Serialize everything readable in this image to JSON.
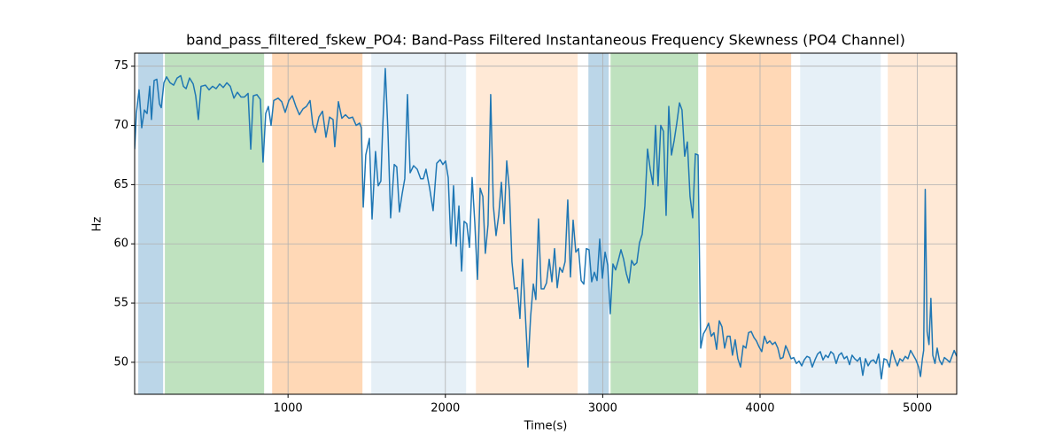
{
  "chart_data": {
    "type": "line",
    "title": "band_pass_filtered_fskew_PO4: Band-Pass Filtered Instantaneous Frequency Skewness (PO4 Channel)",
    "xlabel": "Time(s)",
    "ylabel": "Hz",
    "xlim": [
      25,
      5250
    ],
    "ylim": [
      47.3,
      76.1
    ],
    "xticks": [
      1000,
      2000,
      3000,
      4000,
      5000
    ],
    "yticks": [
      50,
      55,
      60,
      65,
      70,
      75
    ],
    "grid": true,
    "color": "#1f77b4",
    "spans": [
      {
        "start": 48,
        "end": 206,
        "color": "#1f77b44d"
      },
      {
        "start": 217,
        "end": 848,
        "color": "#2ca02c4d"
      },
      {
        "start": 899,
        "end": 1473,
        "color": "#ff7f0e4d"
      },
      {
        "start": 1529,
        "end": 2132,
        "color": "#1f77b41c"
      },
      {
        "start": 2194,
        "end": 2841,
        "color": "#ff7f0e2b"
      },
      {
        "start": 2909,
        "end": 3038,
        "color": "#1f77b44d"
      },
      {
        "start": 3050,
        "end": 3607,
        "color": "#2ca02c4d"
      },
      {
        "start": 3658,
        "end": 4198,
        "color": "#ff7f0e4d"
      },
      {
        "start": 4255,
        "end": 4767,
        "color": "#1f77b41c"
      },
      {
        "start": 4812,
        "end": 5250,
        "color": "#ff7f0e2b"
      }
    ],
    "x": [
      25,
      36,
      53,
      70,
      87,
      104,
      121,
      132,
      149,
      166,
      183,
      194,
      211,
      228,
      250,
      273,
      295,
      318,
      335,
      352,
      374,
      397,
      413,
      430,
      447,
      475,
      498,
      520,
      543,
      565,
      588,
      611,
      633,
      656,
      678,
      701,
      723,
      746,
      763,
      779,
      802,
      824,
      841,
      858,
      875,
      892,
      909,
      937,
      960,
      982,
      1005,
      1027,
      1050,
      1072,
      1095,
      1117,
      1140,
      1157,
      1174,
      1196,
      1219,
      1241,
      1264,
      1286,
      1297,
      1320,
      1342,
      1365,
      1387,
      1410,
      1433,
      1455,
      1466,
      1478,
      1494,
      1517,
      1534,
      1556,
      1573,
      1590,
      1601,
      1618,
      1635,
      1652,
      1675,
      1691,
      1708,
      1725,
      1742,
      1759,
      1776,
      1798,
      1821,
      1843,
      1860,
      1877,
      1900,
      1922,
      1945,
      1967,
      1984,
      2001,
      2018,
      2035,
      2052,
      2069,
      2086,
      2103,
      2119,
      2136,
      2153,
      2170,
      2187,
      2204,
      2221,
      2238,
      2254,
      2271,
      2288,
      2305,
      2322,
      2339,
      2356,
      2373,
      2390,
      2407,
      2423,
      2440,
      2457,
      2474,
      2491,
      2508,
      2525,
      2542,
      2559,
      2575,
      2592,
      2609,
      2626,
      2643,
      2660,
      2677,
      2694,
      2711,
      2727,
      2744,
      2761,
      2778,
      2795,
      2812,
      2829,
      2846,
      2863,
      2880,
      2896,
      2913,
      2930,
      2947,
      2964,
      2981,
      2998,
      3015,
      3032,
      3048,
      3065,
      3082,
      3099,
      3116,
      3133,
      3150,
      3167,
      3184,
      3200,
      3217,
      3234,
      3251,
      3268,
      3285,
      3302,
      3319,
      3336,
      3352,
      3369,
      3386,
      3403,
      3420,
      3437,
      3454,
      3471,
      3488,
      3504,
      3521,
      3538,
      3555,
      3572,
      3589,
      3606,
      3623,
      3640,
      3657,
      3673,
      3690,
      3707,
      3724,
      3741,
      3758,
      3775,
      3792,
      3809,
      3825,
      3842,
      3859,
      3876,
      3893,
      3910,
      3927,
      3944,
      3961,
      3977,
      3994,
      4011,
      4028,
      4045,
      4062,
      4079,
      4096,
      4113,
      4129,
      4146,
      4163,
      4180,
      4197,
      4214,
      4231,
      4248,
      4265,
      4281,
      4298,
      4315,
      4332,
      4349,
      4366,
      4383,
      4400,
      4417,
      4433,
      4450,
      4467,
      4484,
      4501,
      4518,
      4535,
      4552,
      4569,
      4585,
      4602,
      4619,
      4636,
      4653,
      4670,
      4687,
      4704,
      4721,
      4737,
      4754,
      4771,
      4788,
      4805,
      4822,
      4839,
      4856,
      4873,
      4889,
      4906,
      4923,
      4940,
      4957,
      4974,
      4991,
      5008,
      5020,
      5032,
      5040,
      5050,
      5062,
      5074,
      5086,
      5098,
      5112,
      5126,
      5140,
      5156,
      5172,
      5190,
      5206,
      5234,
      5250
    ],
    "values": [
      68,
      71,
      73,
      69.8,
      71.3,
      71,
      73.3,
      70.5,
      73.8,
      73.9,
      71.8,
      71.5,
      73.6,
      74.1,
      73.6,
      73.4,
      74.0,
      74.2,
      73.3,
      73.1,
      74.0,
      73.5,
      72.5,
      70.5,
      73.3,
      73.4,
      73.0,
      73.3,
      73.1,
      73.5,
      73.2,
      73.6,
      73.3,
      72.3,
      72.8,
      72.4,
      72.4,
      72.7,
      68.0,
      72.5,
      72.6,
      72.2,
      66.9,
      71.0,
      71.6,
      70.0,
      72.1,
      72.3,
      72.0,
      71.1,
      72.1,
      72.5,
      71.6,
      70.9,
      71.4,
      71.6,
      72.1,
      70.1,
      69.4,
      70.7,
      71.2,
      69.0,
      70.7,
      70.5,
      68.2,
      72.0,
      70.6,
      70.9,
      70.6,
      70.7,
      70.0,
      70.2,
      69.8,
      63.1,
      67.5,
      68.9,
      62.1,
      67.8,
      64.9,
      65.3,
      69.6,
      74.8,
      69.5,
      62.2,
      66.7,
      66.5,
      62.7,
      64.2,
      65.5,
      72.6,
      66.0,
      66.6,
      66.3,
      65.5,
      65.5,
      66.3,
      64.7,
      62.8,
      66.8,
      67.1,
      66.7,
      67.0,
      65.6,
      60.0,
      64.9,
      59.8,
      63.2,
      57.7,
      61.9,
      61.7,
      59.7,
      65.6,
      61.8,
      57.0,
      64.7,
      64.0,
      59.2,
      61.6,
      72.6,
      63.2,
      60.7,
      62.4,
      65.2,
      61.7,
      67.0,
      64.5,
      58.5,
      56.2,
      56.3,
      53.7,
      58.7,
      54.1,
      49.6,
      53.9,
      56.6,
      55.3,
      62.1,
      56.2,
      56.2,
      56.7,
      58.7,
      56.8,
      59.6,
      56.3,
      58.0,
      57.6,
      58.5,
      63.7,
      57.2,
      62.0,
      59.3,
      59.6,
      56.9,
      56.6,
      59.6,
      59.5,
      56.8,
      57.6,
      56.9,
      60.4,
      57.1,
      59.3,
      58.2,
      54.1,
      58.3,
      57.8,
      58.6,
      59.5,
      58.7,
      57.5,
      56.7,
      58.6,
      58.2,
      58.4,
      60.1,
      60.8,
      63.2,
      68.0,
      66.3,
      65.0,
      70.0,
      64.9,
      70.0,
      69.5,
      62.4,
      71.6,
      67.5,
      68.7,
      70.2,
      71.9,
      71.3,
      67.4,
      68.6,
      64.0,
      62.2,
      67.6,
      67.5,
      51.2,
      52.4,
      52.8,
      53.3,
      52.2,
      52.5,
      51.1,
      53.5,
      53.0,
      51.2,
      52.2,
      52.2,
      50.6,
      51.9,
      50.3,
      49.6,
      51.4,
      51.2,
      52.5,
      52.6,
      52.1,
      51.8,
      51.3,
      50.9,
      52.2,
      51.6,
      51.8,
      51.5,
      51.7,
      51.2,
      50.3,
      50.4,
      51.4,
      50.9,
      50.3,
      50.4,
      49.9,
      50.1,
      49.7,
      50.2,
      50.5,
      50.4,
      49.6,
      50.2,
      50.7,
      50.9,
      50.2,
      50.6,
      50.4,
      50.9,
      50.7,
      49.9,
      50.6,
      50.8,
      50.3,
      50.5,
      49.8,
      50.6,
      50.3,
      50.1,
      50.4,
      48.9,
      50.3,
      49.7,
      50.1,
      50.2,
      49.9,
      50.7,
      48.6,
      50.3,
      50.2,
      49.6,
      51.0,
      50.3,
      49.7,
      50.3,
      50.1,
      50.5,
      50.3,
      51.0,
      50.6,
      50.2,
      49.6,
      48.8,
      50.3,
      51.0,
      64.6,
      52.6,
      51.5,
      55.4,
      50.6,
      49.9,
      51.2,
      50.2,
      49.8,
      50.4,
      50.2,
      50.0,
      51.0,
      50.5
    ]
  }
}
